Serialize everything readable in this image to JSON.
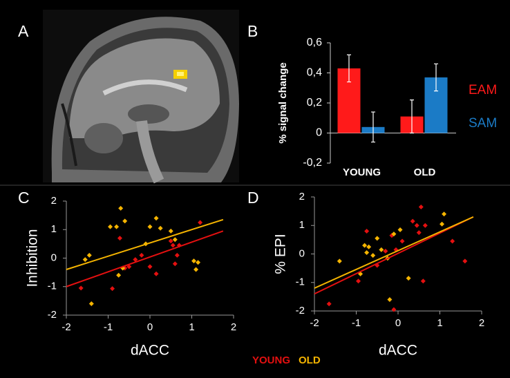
{
  "panels": [
    "A",
    "B",
    "C",
    "D"
  ],
  "chart_data": [
    {
      "type": "bar",
      "ylabel": "% signal change",
      "categories": [
        "YOUNG",
        "OLD"
      ],
      "series": [
        {
          "name": "EAM",
          "color": "#ff1a1a",
          "values": [
            0.43,
            0.11
          ],
          "errors": [
            0.09,
            0.11
          ]
        },
        {
          "name": "SAM",
          "color": "#1b7bc6",
          "values": [
            0.04,
            0.37
          ],
          "errors": [
            0.1,
            0.09
          ]
        }
      ],
      "ylim": [
        -0.2,
        0.6
      ],
      "yticks": [
        {
          "value": 0.6,
          "label": "0,6"
        },
        {
          "value": 0.4,
          "label": "0,4"
        },
        {
          "value": 0.2,
          "label": "0,2"
        },
        0,
        {
          "value": -0.2,
          "label": "-0,2"
        }
      ]
    },
    {
      "type": "scatter",
      "xlabel": "dACC",
      "ylabel": "Inhibition",
      "xlim": [
        -2,
        2
      ],
      "ylim": [
        -2,
        2
      ],
      "xticks": [
        -2,
        -1,
        0,
        1,
        2
      ],
      "yticks": [
        2,
        1,
        0,
        -1,
        -2
      ],
      "series": [
        {
          "name": "YOUNG",
          "color": "#e41010",
          "x": [
            -1.65,
            -0.9,
            -0.72,
            -0.5,
            -0.35,
            -0.2,
            0.0,
            0.15,
            0.5,
            0.55,
            0.6,
            0.7,
            0.65,
            1.2,
            -0.6
          ],
          "values": [
            -1.05,
            -1.07,
            0.7,
            -0.3,
            -0.05,
            0.1,
            -0.3,
            -0.55,
            0.6,
            0.45,
            -0.2,
            0.45,
            0.1,
            1.25,
            -0.35
          ],
          "fit_x": [
            -2,
            1.75
          ],
          "fit_y": [
            -1.0,
            0.95
          ]
        },
        {
          "name": "OLD",
          "color": "#f5b400",
          "x": [
            -1.55,
            -1.45,
            -1.4,
            -0.95,
            -0.8,
            -0.7,
            -0.6,
            -0.75,
            -0.65,
            -0.1,
            0.0,
            0.15,
            0.25,
            0.6,
            1.05,
            1.1,
            1.15,
            0.5
          ],
          "values": [
            -0.05,
            0.1,
            -1.6,
            1.1,
            1.1,
            1.75,
            1.3,
            -0.6,
            -0.35,
            0.5,
            1.1,
            1.4,
            1.05,
            0.65,
            -0.1,
            -0.4,
            -0.15,
            0.95
          ],
          "fit_x": [
            -2,
            1.75
          ],
          "fit_y": [
            -0.4,
            1.35
          ]
        }
      ]
    },
    {
      "type": "scatter",
      "xlabel": "dACC",
      "ylabel": "% EPI",
      "xlim": [
        -2,
        2
      ],
      "ylim": [
        -2,
        2
      ],
      "xticks": [
        -2,
        -1,
        0,
        1,
        2
      ],
      "yticks": [
        2,
        1,
        0,
        -1,
        -2
      ],
      "series": [
        {
          "color": "#e41010",
          "x": [
            -1.65,
            -0.95,
            -0.75,
            -0.5,
            -0.3,
            -0.15,
            -0.1,
            0.1,
            0.35,
            0.45,
            0.55,
            0.6,
            0.65,
            0.5,
            1.3,
            1.6,
            -0.05
          ],
          "values": [
            -1.75,
            -0.95,
            0.8,
            -0.4,
            0.1,
            0.65,
            -1.95,
            0.45,
            1.15,
            1.0,
            1.65,
            -0.95,
            1.0,
            0.75,
            0.45,
            -0.25,
            0.15
          ],
          "fit_x": [
            -2,
            1.8
          ],
          "fit_y": [
            -1.4,
            1.3
          ]
        },
        {
          "color": "#f5b400",
          "x": [
            -1.4,
            -0.9,
            -0.8,
            -0.75,
            -0.7,
            -0.6,
            -0.5,
            -0.25,
            -0.2,
            -0.1,
            0.05,
            0.25,
            1.05,
            1.1,
            -0.4
          ],
          "values": [
            -0.25,
            -0.7,
            0.3,
            0.05,
            0.25,
            -0.05,
            0.55,
            -0.15,
            -1.6,
            0.7,
            0.85,
            -0.85,
            1.05,
            1.4,
            0.15
          ],
          "fit_x": [
            -2,
            1.8
          ],
          "fit_y": [
            -1.2,
            1.3
          ]
        }
      ]
    }
  ]
}
